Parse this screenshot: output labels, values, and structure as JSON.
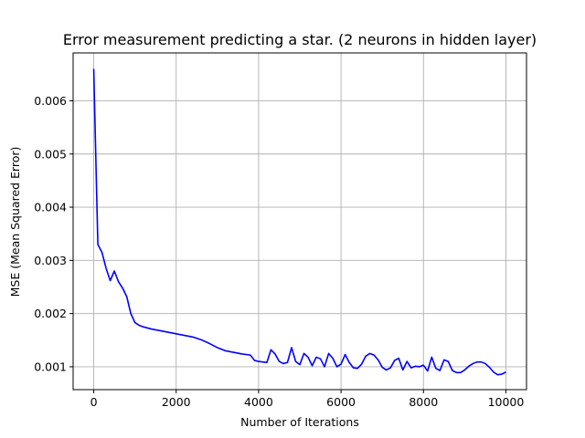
{
  "chart_data": {
    "type": "line",
    "title": "Error measurement predicting a star. (2 neurons in hidden layer)",
    "xlabel": "Number of Iterations",
    "ylabel": "MSE (Mean Squared Error)",
    "xlim": [
      -500,
      10500
    ],
    "ylim": [
      0.00057,
      0.0069
    ],
    "xticks": [
      0,
      2000,
      4000,
      6000,
      8000,
      10000
    ],
    "xtick_labels": [
      "0",
      "2000",
      "4000",
      "6000",
      "8000",
      "10000"
    ],
    "yticks": [
      0.001,
      0.002,
      0.003,
      0.004,
      0.005,
      0.006
    ],
    "ytick_labels": [
      "0.001",
      "0.002",
      "0.003",
      "0.004",
      "0.005",
      "0.006"
    ],
    "grid": true,
    "series": [
      {
        "color": "#0000ff",
        "x": [
          0,
          100,
          200,
          300,
          400,
          500,
          600,
          700,
          800,
          900,
          1000,
          1100,
          1200,
          1400,
          1600,
          1800,
          2000,
          2200,
          2400,
          2600,
          2800,
          3000,
          3200,
          3400,
          3600,
          3800,
          3900,
          4000,
          4100,
          4200,
          4300,
          4400,
          4500,
          4600,
          4700,
          4800,
          4900,
          5000,
          5100,
          5200,
          5300,
          5400,
          5500,
          5600,
          5700,
          5800,
          5900,
          6000,
          6100,
          6200,
          6300,
          6400,
          6500,
          6600,
          6700,
          6800,
          6900,
          7000,
          7100,
          7200,
          7300,
          7400,
          7500,
          7600,
          7700,
          7800,
          7900,
          8000,
          8100,
          8200,
          8300,
          8400,
          8500,
          8600,
          8700,
          8800,
          8900,
          9000,
          9100,
          9200,
          9300,
          9400,
          9500,
          9600,
          9700,
          9800,
          9900,
          10000
        ],
        "y": [
          0.0066,
          0.0033,
          0.00315,
          0.00285,
          0.00262,
          0.0028,
          0.0026,
          0.00248,
          0.00232,
          0.002,
          0.00183,
          0.00178,
          0.00175,
          0.00171,
          0.00168,
          0.00165,
          0.00162,
          0.00159,
          0.00156,
          0.00151,
          0.00144,
          0.00136,
          0.0013,
          0.00127,
          0.00124,
          0.00122,
          0.00112,
          0.0011,
          0.00109,
          0.00108,
          0.00132,
          0.00124,
          0.0011,
          0.00106,
          0.00108,
          0.00136,
          0.0011,
          0.00104,
          0.00125,
          0.00118,
          0.00102,
          0.00118,
          0.00115,
          0.001,
          0.00125,
          0.00116,
          0.001,
          0.00105,
          0.00123,
          0.00108,
          0.00098,
          0.00097,
          0.00105,
          0.0012,
          0.00125,
          0.00122,
          0.00113,
          0.00099,
          0.00094,
          0.00098,
          0.00112,
          0.00116,
          0.00094,
          0.0011,
          0.00098,
          0.00101,
          0.001,
          0.00103,
          0.00092,
          0.00118,
          0.00097,
          0.00093,
          0.00113,
          0.0011,
          0.00093,
          0.00089,
          0.00089,
          0.00094,
          0.00101,
          0.00106,
          0.00109,
          0.00109,
          0.00106,
          0.00099,
          0.0009,
          0.00085,
          0.00086,
          0.0009
        ]
      }
    ]
  }
}
